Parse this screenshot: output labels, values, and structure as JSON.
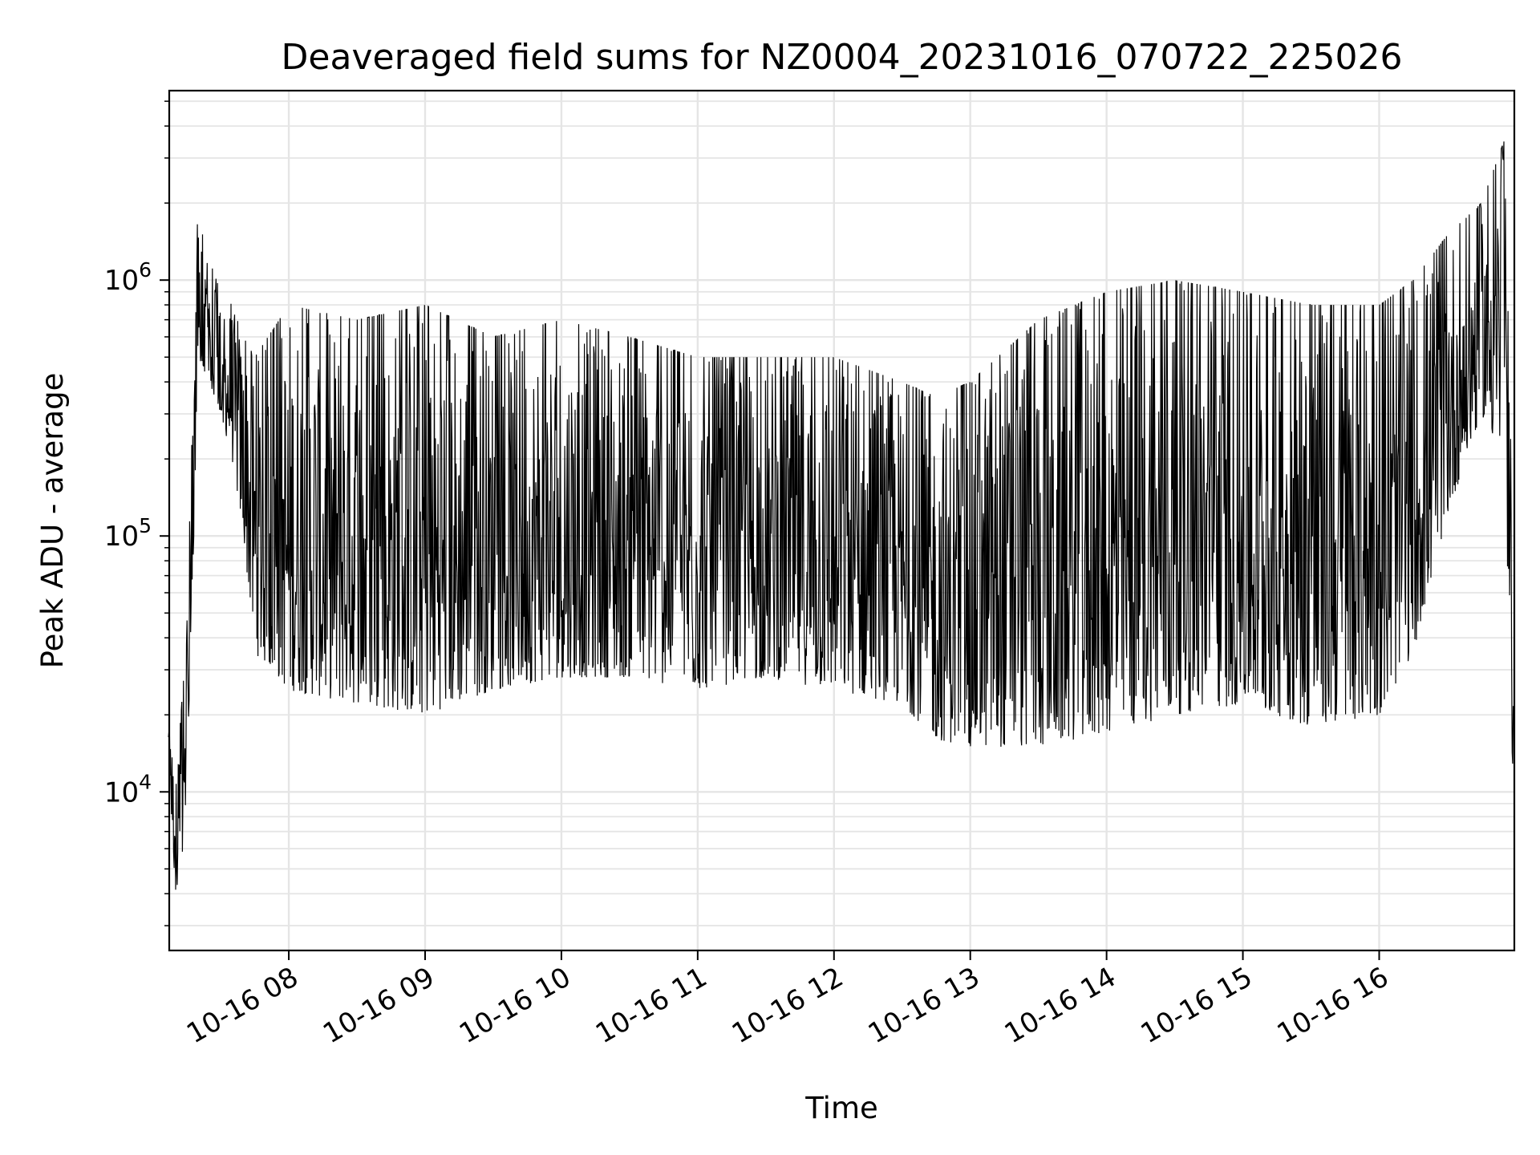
{
  "chart_data": {
    "type": "line",
    "title": "Deaveraged field sums for NZ0004_20231016_070722_225026",
    "xlabel": "Time",
    "ylabel": "Peak ADU - average",
    "yscale": "log",
    "ylim": [
      2400,
      5500000
    ],
    "xlim": [
      "2023-10-16 07:07:22",
      "2023-10-16 16:59:30"
    ],
    "grid": true,
    "line_color": "#000000",
    "grid_color": "#e5e5e5",
    "x_ticks": [
      {
        "value": "2023-10-16 08:00",
        "label": "10-16 08"
      },
      {
        "value": "2023-10-16 09:00",
        "label": "10-16 09"
      },
      {
        "value": "2023-10-16 10:00",
        "label": "10-16 10"
      },
      {
        "value": "2023-10-16 11:00",
        "label": "10-16 11"
      },
      {
        "value": "2023-10-16 12:00",
        "label": "10-16 12"
      },
      {
        "value": "2023-10-16 13:00",
        "label": "10-16 13"
      },
      {
        "value": "2023-10-16 14:00",
        "label": "10-16 14"
      },
      {
        "value": "2023-10-16 15:00",
        "label": "10-16 15"
      },
      {
        "value": "2023-10-16 16:00",
        "label": "10-16 16"
      }
    ],
    "y_ticks": [
      {
        "value": 10000,
        "base": "10",
        "exp": "4"
      },
      {
        "value": 100000,
        "base": "10",
        "exp": "5"
      },
      {
        "value": 1000000,
        "base": "10",
        "exp": "6"
      }
    ],
    "envelope": {
      "x": [
        "2023-10-16 07:07",
        "2023-10-16 07:10",
        "2023-10-16 07:15",
        "2023-10-16 07:20",
        "2023-10-16 07:25",
        "2023-10-16 07:30",
        "2023-10-16 07:35",
        "2023-10-16 07:40",
        "2023-10-16 07:45",
        "2023-10-16 08:00",
        "2023-10-16 08:30",
        "2023-10-16 09:00",
        "2023-10-16 09:30",
        "2023-10-16 10:00",
        "2023-10-16 10:30",
        "2023-10-16 11:00",
        "2023-10-16 11:30",
        "2023-10-16 12:00",
        "2023-10-16 12:30",
        "2023-10-16 12:45",
        "2023-10-16 13:00",
        "2023-10-16 13:30",
        "2023-10-16 14:00",
        "2023-10-16 14:30",
        "2023-10-16 15:00",
        "2023-10-16 15:30",
        "2023-10-16 16:00",
        "2023-10-16 16:15",
        "2023-10-16 16:30",
        "2023-10-16 16:45",
        "2023-10-16 16:55",
        "2023-10-16 16:59"
      ],
      "low": [
        15000,
        3500,
        6000,
        500000,
        400000,
        300000,
        200000,
        100000,
        35000,
        25000,
        22000,
        20000,
        25000,
        28000,
        28000,
        25000,
        28000,
        25000,
        22000,
        16000,
        15000,
        15000,
        17000,
        20000,
        22000,
        18000,
        20000,
        35000,
        120000,
        300000,
        200000,
        10000
      ],
      "high": [
        20000,
        10000,
        40000,
        2000000,
        1200000,
        900000,
        800000,
        600000,
        500000,
        800000,
        700000,
        800000,
        600000,
        700000,
        600000,
        500000,
        500000,
        500000,
        400000,
        350000,
        400000,
        700000,
        900000,
        1000000,
        900000,
        800000,
        800000,
        1000000,
        1500000,
        2000000,
        3500000,
        100000
      ]
    }
  }
}
